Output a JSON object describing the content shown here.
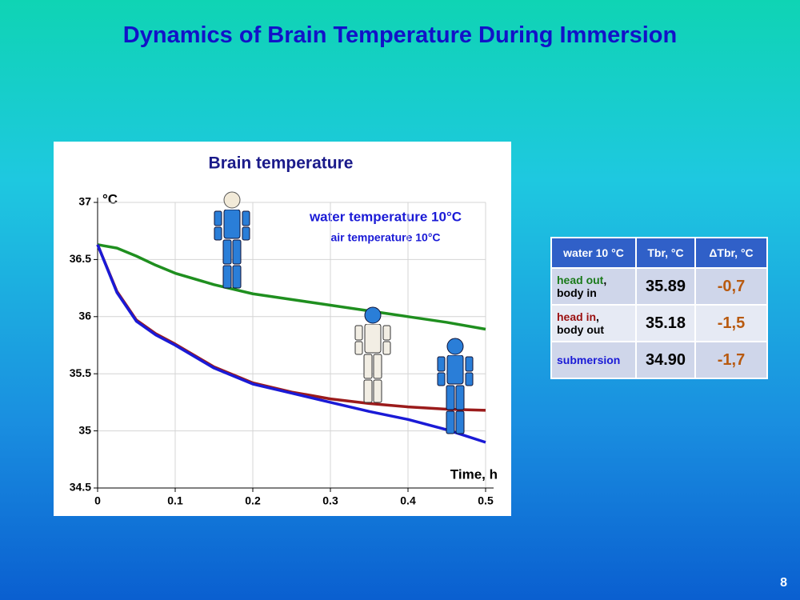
{
  "slide_title": "Dynamics of Brain Temperature During Immersion",
  "chart_data": {
    "type": "line",
    "title": "Brain temperature",
    "y_unit": "°C",
    "x_label": "Time, h",
    "annotations": [
      "water temperature  10°C",
      "air temperature  10°C"
    ],
    "x": [
      0,
      0.025,
      0.05,
      0.075,
      0.1,
      0.15,
      0.2,
      0.25,
      0.3,
      0.35,
      0.4,
      0.45,
      0.5
    ],
    "series": [
      {
        "color": "#1f8f1f",
        "values": [
          36.63,
          36.6,
          36.53,
          36.45,
          36.38,
          36.28,
          36.2,
          36.15,
          36.1,
          36.05,
          36.0,
          35.95,
          35.89
        ]
      },
      {
        "color": "#9b1b1b",
        "values": [
          36.63,
          36.22,
          35.97,
          35.85,
          35.76,
          35.56,
          35.42,
          35.34,
          35.28,
          35.24,
          35.21,
          35.19,
          35.18
        ]
      },
      {
        "color": "#1a1ad6",
        "values": [
          36.63,
          36.21,
          35.96,
          35.84,
          35.75,
          35.55,
          35.41,
          35.33,
          35.25,
          35.17,
          35.1,
          35.01,
          34.9
        ]
      }
    ],
    "xlim": [
      0,
      0.5
    ],
    "xticks": [
      0,
      0.1,
      0.2,
      0.3,
      0.4,
      0.5
    ],
    "ylim": [
      34.5,
      37
    ],
    "yticks": [
      34.5,
      35,
      35.5,
      36,
      36.5,
      37
    ],
    "grid": true
  },
  "table": {
    "header": [
      "water 10 °C",
      "Tbr, °C",
      "ΔTbr, °C"
    ],
    "rows": [
      {
        "label_main": "head out",
        "label_tail": ",",
        "label_second": "body in",
        "main_color": "#1a7a1a",
        "tbr": "35.89",
        "dtbr": "-0,7"
      },
      {
        "label_main": "head in",
        "label_tail": ",",
        "label_second": "body out",
        "main_color": "#9b1010",
        "tbr": "35.18",
        "dtbr": "-1,5"
      },
      {
        "label_main": "submersion",
        "main_color": "#1a1ad6",
        "tbr": "34.90",
        "dtbr": "-1,7"
      }
    ]
  },
  "page_number": "8"
}
